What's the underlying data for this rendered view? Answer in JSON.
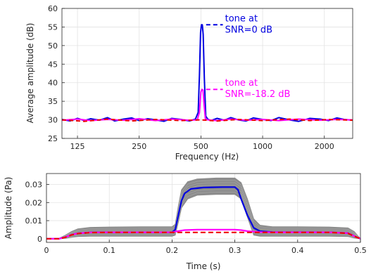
{
  "chart_data": [
    {
      "type": "line",
      "xlabel": "Frequency (Hz)",
      "ylabel": "Average amplitude (dB)",
      "x_scale": "log",
      "xlim": [
        105,
        2750
      ],
      "ylim": [
        25,
        60
      ],
      "grid": true,
      "xticks": [
        125,
        250,
        500,
        1000,
        2000
      ],
      "yticks": [
        25,
        30,
        35,
        40,
        45,
        50,
        55,
        60
      ],
      "series": [
        {
          "color": "#0000e0",
          "style": "solid",
          "x": [
            105,
            115,
            125,
            135,
            145,
            160,
            175,
            190,
            210,
            230,
            250,
            275,
            300,
            330,
            360,
            400,
            440,
            470,
            485,
            492,
            498,
            503,
            508,
            513,
            520,
            528,
            540,
            560,
            600,
            650,
            700,
            760,
            830,
            900,
            1000,
            1100,
            1200,
            1350,
            1500,
            1700,
            1900,
            2100,
            2300,
            2500,
            2750
          ],
          "y": [
            30.1,
            29.7,
            30.4,
            29.8,
            30.3,
            29.9,
            30.6,
            29.7,
            30.2,
            30.5,
            29.8,
            30.3,
            30.0,
            29.6,
            30.4,
            30.1,
            29.7,
            30.2,
            32.0,
            42.0,
            53.5,
            55.6,
            55.6,
            53.0,
            41.0,
            31.0,
            30.2,
            29.8,
            30.4,
            29.9,
            30.6,
            30.0,
            29.7,
            30.5,
            30.1,
            29.8,
            30.6,
            30.0,
            29.6,
            30.4,
            30.2,
            29.8,
            30.5,
            30.1,
            29.9
          ]
        },
        {
          "color": "#ff00ff",
          "style": "solid",
          "x": [
            105,
            125,
            145,
            175,
            210,
            250,
            300,
            360,
            440,
            480,
            492,
            500,
            506,
            512,
            518,
            526,
            540,
            600,
            700,
            830,
            1000,
            1200,
            1500,
            1900,
            2300,
            2750
          ],
          "y": [
            29.9,
            30.2,
            29.8,
            30.1,
            29.9,
            30.3,
            29.8,
            30.2,
            29.9,
            30.0,
            32.0,
            37.5,
            38.2,
            38.0,
            34.0,
            30.2,
            30.0,
            29.8,
            30.2,
            29.9,
            30.1,
            29.8,
            30.2,
            29.9,
            30.1,
            30.0
          ]
        },
        {
          "color": "#ee0000",
          "style": "dashed",
          "x": [
            105,
            135,
            175,
            230,
            300,
            400,
            500,
            600,
            760,
            1000,
            1350,
            1700,
            2100,
            2750
          ],
          "y": [
            30.0,
            29.6,
            30.2,
            29.7,
            30.1,
            29.8,
            30.0,
            29.7,
            30.1,
            29.8,
            30.2,
            29.8,
            30.1,
            29.9
          ]
        },
        {
          "color": "#0000e0",
          "style": "dashed",
          "x": [
            530,
            640
          ],
          "y": [
            55.6,
            55.6
          ]
        },
        {
          "color": "#ff00ff",
          "style": "dashed",
          "x": [
            530,
            640
          ],
          "y": [
            38.2,
            38.2
          ]
        }
      ],
      "annotations": [
        {
          "lines": [
            "tone at",
            "SNR=0 dB"
          ],
          "color": "#0000e0",
          "x": 640,
          "y": 55.6
        },
        {
          "lines": [
            "tone at",
            "SNR=-18.2 dB"
          ],
          "color": "#ff00ff",
          "x": 640,
          "y": 38.2
        }
      ]
    },
    {
      "type": "line",
      "xlabel": "Time (s)",
      "ylabel": "Amplitude (Pa)",
      "xlim": [
        0,
        0.5
      ],
      "ylim": [
        -0.002,
        0.036
      ],
      "grid": true,
      "xticks": [
        0,
        0.1,
        0.2,
        0.3,
        0.4,
        0.5
      ],
      "xtick_labels": [
        "0",
        "0.1",
        "0.2",
        "0.3",
        "0.4",
        "0.5"
      ],
      "yticks": [
        0,
        0.01,
        0.02,
        0.03
      ],
      "ytick_labels": [
        "0",
        "0.01",
        "0.02",
        "0.03"
      ],
      "band": {
        "color": "#8c8c8c",
        "x": [
          0,
          0.02,
          0.03,
          0.04,
          0.05,
          0.07,
          0.1,
          0.15,
          0.2,
          0.205,
          0.21,
          0.215,
          0.225,
          0.24,
          0.27,
          0.3,
          0.31,
          0.32,
          0.33,
          0.34,
          0.36,
          0.4,
          0.45,
          0.48,
          0.49,
          0.5
        ],
        "upper": [
          0,
          0.0002,
          0.002,
          0.004,
          0.0055,
          0.0063,
          0.0065,
          0.0066,
          0.0066,
          0.008,
          0.018,
          0.027,
          0.0315,
          0.033,
          0.0335,
          0.0335,
          0.031,
          0.022,
          0.011,
          0.0075,
          0.0066,
          0.0066,
          0.0065,
          0.006,
          0.004,
          0.0
        ],
        "lower": [
          0,
          0,
          0.0002,
          0.0008,
          0.0012,
          0.0014,
          0.0014,
          0.0014,
          0.0014,
          0.002,
          0.009,
          0.017,
          0.022,
          0.024,
          0.0245,
          0.0245,
          0.022,
          0.012,
          0.002,
          0.0014,
          0.0014,
          0.0014,
          0.0014,
          0.0012,
          0.0004,
          0.0
        ]
      },
      "series": [
        {
          "color": "#0000e0",
          "style": "solid",
          "x": [
            0,
            0.02,
            0.03,
            0.04,
            0.05,
            0.07,
            0.1,
            0.2,
            0.205,
            0.21,
            0.215,
            0.22,
            0.23,
            0.25,
            0.28,
            0.3,
            0.305,
            0.31,
            0.32,
            0.33,
            0.34,
            0.36,
            0.45,
            0.48,
            0.49,
            0.5
          ],
          "y": [
            0,
            0,
            0.0009,
            0.0022,
            0.003,
            0.0035,
            0.0036,
            0.0036,
            0.005,
            0.013,
            0.021,
            0.025,
            0.0275,
            0.0283,
            0.0285,
            0.0285,
            0.027,
            0.022,
            0.013,
            0.006,
            0.0042,
            0.0037,
            0.0036,
            0.0031,
            0.0015,
            0
          ]
        },
        {
          "color": "#ff00ff",
          "style": "solid",
          "x": [
            0,
            0.02,
            0.03,
            0.04,
            0.05,
            0.07,
            0.1,
            0.2,
            0.21,
            0.22,
            0.24,
            0.27,
            0.3,
            0.31,
            0.32,
            0.34,
            0.36,
            0.45,
            0.48,
            0.49,
            0.5
          ],
          "y": [
            0,
            0,
            0.0009,
            0.0022,
            0.003,
            0.0035,
            0.0036,
            0.0036,
            0.0043,
            0.0048,
            0.005,
            0.005,
            0.005,
            0.0048,
            0.0042,
            0.0037,
            0.0036,
            0.0036,
            0.0031,
            0.0015,
            0
          ]
        },
        {
          "color": "#ee0000",
          "style": "dashed",
          "x": [
            0,
            0.02,
            0.03,
            0.04,
            0.05,
            0.07,
            0.1,
            0.2,
            0.3,
            0.4,
            0.45,
            0.48,
            0.49,
            0.5
          ],
          "y": [
            0,
            0,
            0.0008,
            0.0021,
            0.0029,
            0.0034,
            0.0035,
            0.0035,
            0.0035,
            0.0035,
            0.0035,
            0.003,
            0.0014,
            0
          ]
        }
      ]
    }
  ]
}
